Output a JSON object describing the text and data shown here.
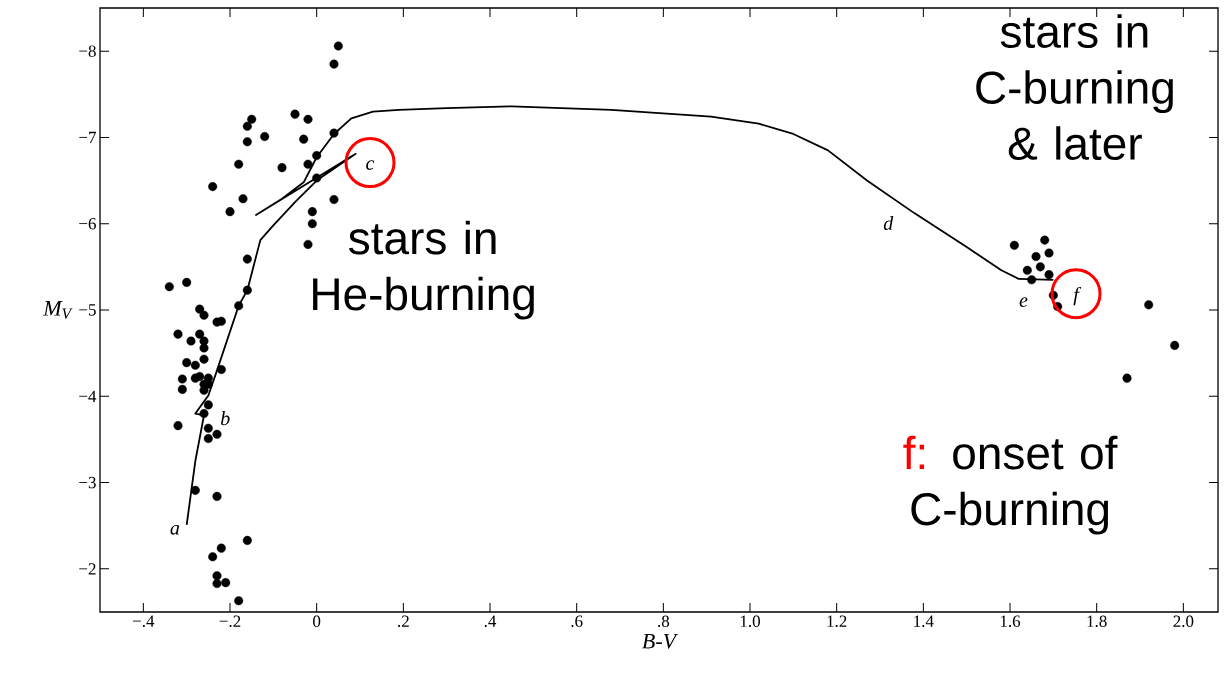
{
  "chart_data": {
    "type": "scatter",
    "xlabel": "B-V",
    "ylabel": "M$_{V}$",
    "xlim": [
      -0.5,
      2.08
    ],
    "ylim": [
      -1.5,
      -8.5
    ],
    "xticks": [
      {
        "value": -0.4,
        "label": "−.4"
      },
      {
        "value": -0.2,
        "label": "−.2"
      },
      {
        "value": 0,
        "label": "0"
      },
      {
        "value": 0.2,
        "label": ".2"
      },
      {
        "value": 0.4,
        "label": ".4"
      },
      {
        "value": 0.6,
        "label": ".6"
      },
      {
        "value": 0.8,
        "label": ".8"
      },
      {
        "value": 1.0,
        "label": "1.0"
      },
      {
        "value": 1.2,
        "label": "1.2"
      },
      {
        "value": 1.4,
        "label": "1.4"
      },
      {
        "value": 1.6,
        "label": "1.6"
      },
      {
        "value": 1.8,
        "label": "1.8"
      },
      {
        "value": 2.0,
        "label": "2.0"
      }
    ],
    "yticks": [
      {
        "value": -8,
        "label": "−8"
      },
      {
        "value": -7,
        "label": "−7"
      },
      {
        "value": -6,
        "label": "−6"
      },
      {
        "value": -5,
        "label": "−5"
      },
      {
        "value": -4,
        "label": "−4"
      },
      {
        "value": -3,
        "label": "−3"
      },
      {
        "value": -2,
        "label": "−2"
      }
    ],
    "series": [
      {
        "type": "line",
        "color": "#000000",
        "marker": "none",
        "x": [
          -0.3,
          -0.28,
          -0.26,
          -0.28,
          -0.25,
          -0.23,
          -0.18,
          -0.16,
          -0.13,
          -0.1,
          -0.05,
          0.0,
          0.09,
          -0.14,
          -0.08,
          -0.03,
          0.0,
          0.04,
          0.08,
          0.13,
          0.19,
          0.3,
          0.45,
          0.68,
          0.91,
          1.02,
          1.1,
          1.18,
          1.27,
          1.38,
          1.5,
          1.58,
          1.62,
          1.7
        ],
        "values": [
          -2.51,
          -3.25,
          -3.78,
          -3.8,
          -4.01,
          -4.3,
          -5.05,
          -5.23,
          -5.81,
          -5.98,
          -6.25,
          -6.5,
          -6.81,
          -6.1,
          -6.29,
          -6.48,
          -6.77,
          -7.04,
          -7.22,
          -7.3,
          -7.32,
          -7.34,
          -7.36,
          -7.32,
          -7.24,
          -7.16,
          -7.04,
          -6.85,
          -6.5,
          -6.12,
          -5.73,
          -5.46,
          -5.36,
          -5.35
        ]
      },
      {
        "type": "scatter",
        "color": "#000000",
        "marker": "circle",
        "x": [
          0.05,
          0.04,
          -0.05,
          -0.02,
          -0.15,
          -0.16,
          -0.16,
          -0.12,
          -0.03,
          0.04,
          0.0,
          -0.02,
          -0.18,
          -0.08,
          0.0,
          -0.24,
          -0.17,
          0.04,
          -0.2,
          -0.01,
          -0.01,
          -0.02,
          -0.16,
          -0.34,
          -0.3,
          -0.16,
          -0.18,
          -0.27,
          -0.26,
          -0.23,
          -0.22,
          -0.32,
          -0.27,
          -0.29,
          -0.26,
          -0.26,
          -0.3,
          -0.28,
          -0.26,
          -0.22,
          -0.31,
          -0.28,
          -0.27,
          -0.25,
          -0.26,
          -0.25,
          -0.31,
          -0.26,
          -0.25,
          -0.32,
          -0.26,
          -0.25,
          -0.23,
          -0.25,
          -0.28,
          -0.23,
          -0.16,
          -0.22,
          -0.24,
          -0.23,
          -0.23,
          -0.21,
          -0.18,
          1.61,
          1.68,
          1.66,
          1.69,
          1.64,
          1.67,
          1.69,
          1.65,
          1.7,
          1.71,
          1.92,
          1.98,
          1.87
        ],
        "values": [
          -8.06,
          -7.85,
          -7.27,
          -7.21,
          -7.21,
          -7.13,
          -6.95,
          -7.01,
          -6.98,
          -7.05,
          -6.79,
          -6.69,
          -6.69,
          -6.65,
          -6.53,
          -6.43,
          -6.29,
          -6.28,
          -6.14,
          -6.14,
          -6.0,
          -5.76,
          -5.59,
          -5.27,
          -5.32,
          -5.23,
          -5.05,
          -5.01,
          -4.94,
          -4.86,
          -4.87,
          -4.72,
          -4.72,
          -4.64,
          -4.64,
          -4.56,
          -4.39,
          -4.36,
          -4.43,
          -4.31,
          -4.2,
          -4.21,
          -4.23,
          -4.21,
          -4.14,
          -4.14,
          -4.08,
          -4.07,
          -3.9,
          -3.66,
          -3.8,
          -3.63,
          -3.56,
          -3.51,
          -2.91,
          -2.84,
          -2.33,
          -2.24,
          -2.14,
          -1.92,
          -1.83,
          -1.84,
          -1.63,
          -5.75,
          -5.81,
          -5.62,
          -5.66,
          -5.46,
          -5.5,
          -5.41,
          -5.35,
          -5.17,
          -5.04,
          -5.06,
          -4.59,
          -4.21
        ]
      }
    ],
    "annotations": [
      "stars in He-burning",
      "stars in C-burning & later",
      "f:",
      "onset of C-burning",
      "a",
      "b",
      "c",
      "d",
      "e",
      "f"
    ]
  }
}
